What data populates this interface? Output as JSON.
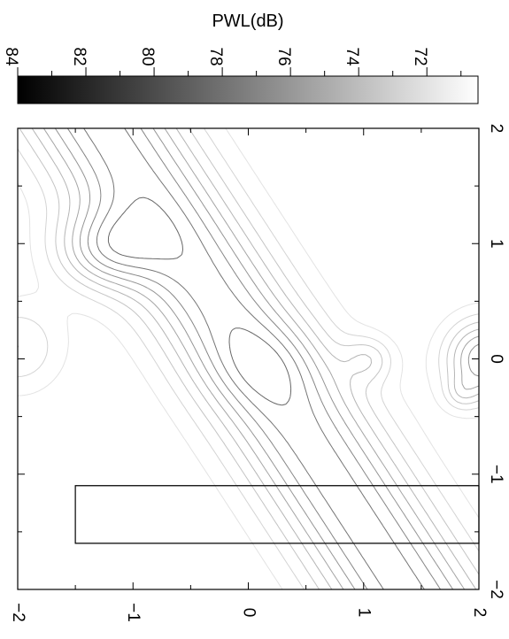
{
  "chart_data": {
    "type": "contour",
    "colorbar": {
      "title": "PWL(dB)",
      "range": [
        84,
        70.5
      ],
      "ticks": [
        84,
        82,
        80,
        78,
        76,
        74,
        72
      ],
      "tick_labels": [
        "84",
        "82",
        "80",
        "78",
        "76",
        "74",
        "72"
      ],
      "colormap": "black-to-white"
    },
    "x_axis": {
      "range": [
        2,
        -2
      ],
      "ticks": [
        2,
        1,
        0,
        -1,
        -2
      ],
      "tick_labels": [
        "2",
        "1",
        "0",
        "−1",
        "−2"
      ],
      "label": ""
    },
    "y_axis": {
      "range": [
        -2,
        2
      ],
      "ticks": [
        -2,
        -1,
        0,
        1,
        2
      ],
      "tick_labels": [
        "−2",
        "−1",
        "0",
        "1",
        "2"
      ],
      "label": ""
    },
    "contour_levels_dB": [
      71,
      72,
      73,
      74,
      75,
      76,
      77,
      78,
      79,
      80,
      81,
      82,
      83
    ],
    "outlines": [
      {
        "name": "rectangle",
        "points": [
          [
            -1.1,
            2
          ],
          [
            -1.1,
            -1.5
          ],
          [
            -1.6,
            -1.5
          ],
          [
            -1.6,
            2
          ],
          [
            -1.1,
            2
          ]
        ]
      }
    ]
  }
}
